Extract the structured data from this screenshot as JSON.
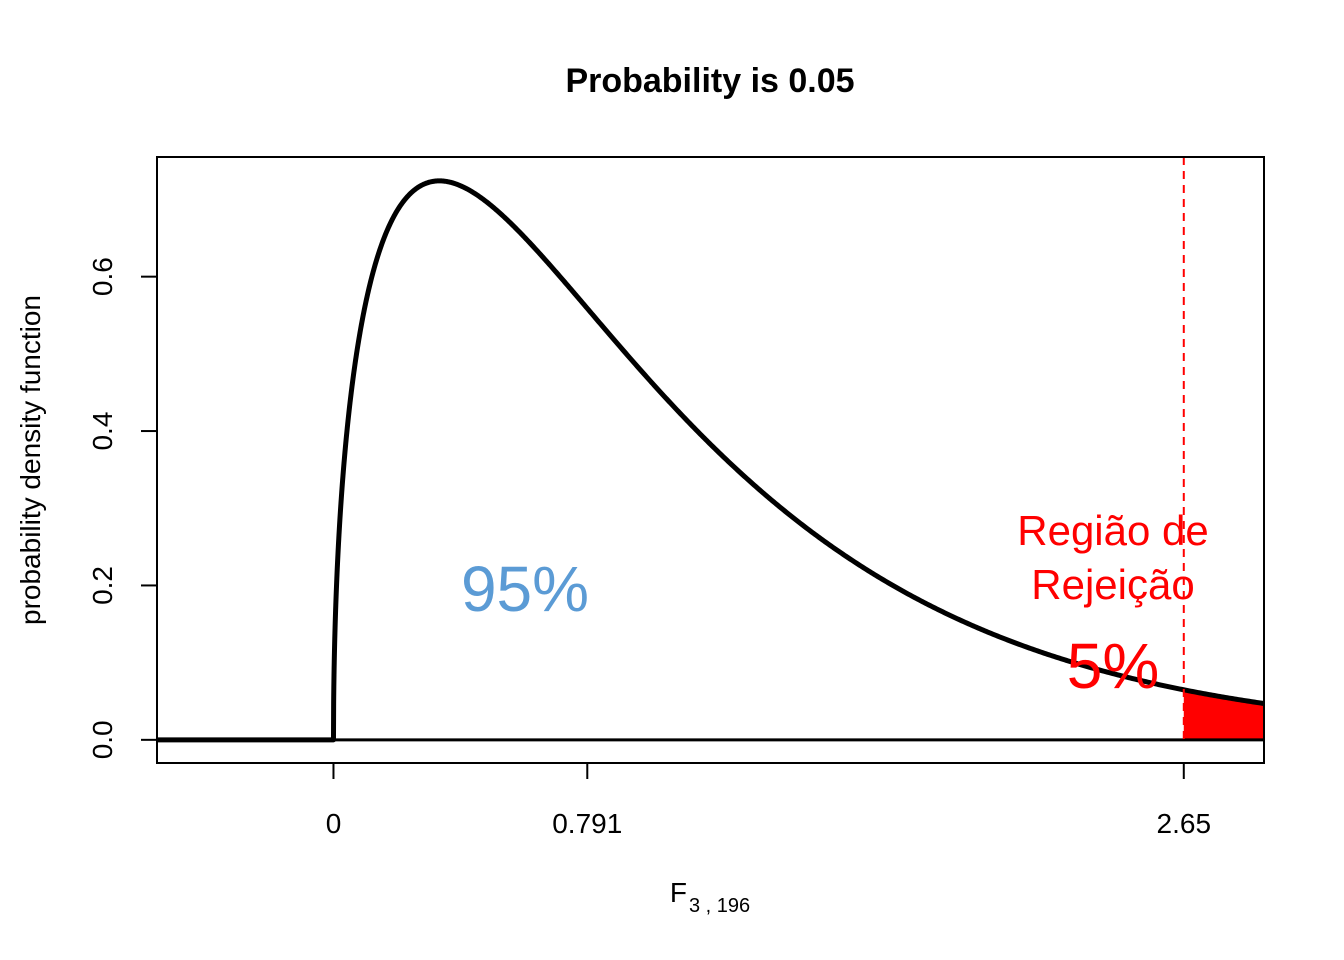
{
  "colors": {
    "accept": "#5b9bd5",
    "reject": "#ff0000",
    "curve": "#000000"
  },
  "chart_data": {
    "type": "area",
    "title": "Probability is 0.05",
    "xlabel_main": "F",
    "xlabel_sub": "3 , 196",
    "ylabel": "probability  density  function",
    "distribution": {
      "name": "F",
      "df1": 3,
      "df2": 196
    },
    "xlim": [
      -0.55,
      2.9
    ],
    "ylim": [
      -0.03,
      0.755
    ],
    "x_ticks": [
      {
        "value": 0,
        "label": "0"
      },
      {
        "value": 0.791,
        "label": "0.791"
      },
      {
        "value": 2.65,
        "label": "2.65"
      }
    ],
    "y_ticks": [
      {
        "value": 0.0,
        "label": "0.0"
      },
      {
        "value": 0.2,
        "label": "0.2"
      },
      {
        "value": 0.4,
        "label": "0.4"
      },
      {
        "value": 0.6,
        "label": "0.6"
      }
    ],
    "curve_range": [
      -0.55,
      3.65
    ],
    "critical_value": 2.65,
    "tail_probability": 0.05,
    "annotations": {
      "accept_percent": "95%",
      "reject_line1": "Região de",
      "reject_line2": "Rejeição",
      "reject_percent": "5%"
    },
    "grid": false
  }
}
